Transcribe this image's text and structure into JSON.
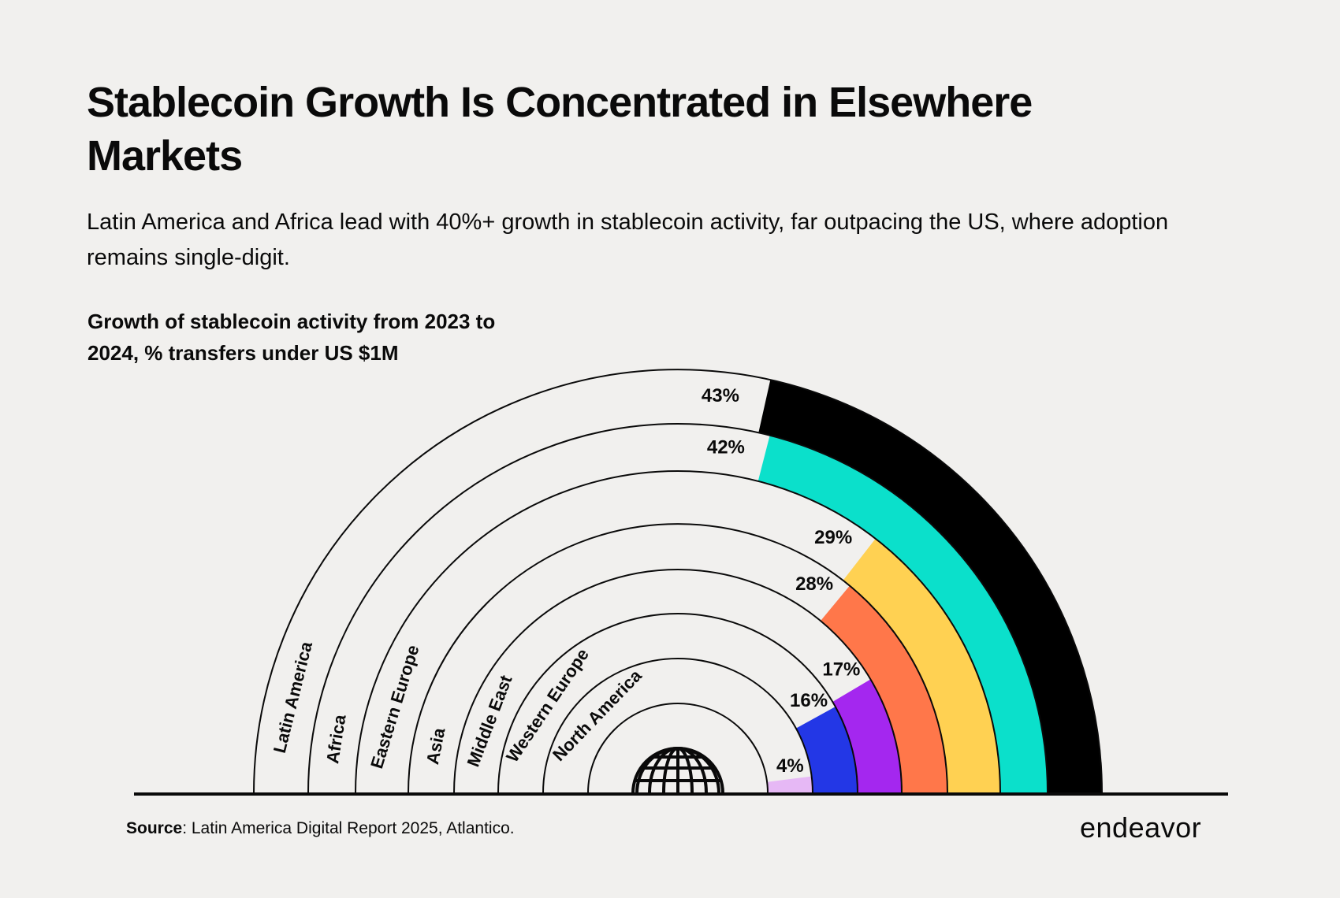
{
  "header": {
    "title": "Stablecoin Growth Is Concentrated in Elsewhere Markets",
    "subtitle": "Latin America and Africa lead with 40%+ growth in stablecoin activity, far outpacing the US, where adoption remains single-digit."
  },
  "chart_data": {
    "type": "radial-bar",
    "title": "Growth of stablecoin  activity from 2023 to 2024, % transfers under US $1M",
    "unit": "%",
    "range": [
      0,
      100
    ],
    "series": [
      {
        "category": "Latin America",
        "value": 43,
        "label": "43%",
        "color": "#000000"
      },
      {
        "category": "Africa",
        "value": 42,
        "label": "42%",
        "color": "#0be0cb"
      },
      {
        "category": "Eastern Europe",
        "value": 29,
        "label": "29%",
        "color": "#ffd152"
      },
      {
        "category": "Asia",
        "value": 28,
        "label": "28%",
        "color": "#ff774a"
      },
      {
        "category": "Middle East",
        "value": 17,
        "label": "17%",
        "color": "#a427ef"
      },
      {
        "category": "Western Europe",
        "value": 16,
        "label": "16%",
        "color": "#2337e6"
      },
      {
        "category": "North America",
        "value": 4,
        "label": "4%",
        "color": "#e6b8f5"
      }
    ],
    "center_icon": "globe-icon"
  },
  "footer": {
    "source_label": "Source",
    "source_text": ": Latin America Digital Report 2025, Atlantico.",
    "logo": "endeavor"
  }
}
